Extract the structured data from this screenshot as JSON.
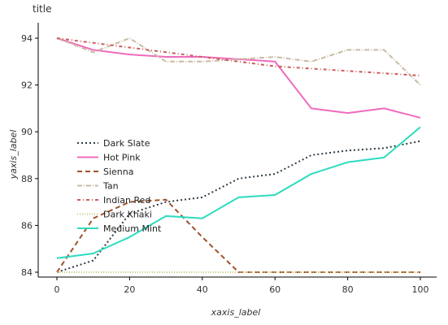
{
  "chart_data": {
    "type": "line",
    "title": "title",
    "xlabel": "xaxis_label",
    "ylabel": "yaxis_label",
    "xlim": [
      0,
      100
    ],
    "ylim": [
      84,
      94
    ],
    "xticks": [
      0,
      20,
      40,
      60,
      80,
      100
    ],
    "yticks": [
      84,
      86,
      88,
      90,
      92,
      94
    ],
    "grid": false,
    "legend_placement": "left-inside",
    "x": [
      0,
      10,
      20,
      30,
      40,
      50,
      60,
      70,
      80,
      90,
      100
    ],
    "series": [
      {
        "name": "Dark Slate",
        "color": "#2f3b45",
        "dash": "2,3",
        "values": [
          84.0,
          84.5,
          86.5,
          87.0,
          87.2,
          88.0,
          88.2,
          89.0,
          89.2,
          89.3,
          89.6
        ]
      },
      {
        "name": "Hot Pink",
        "color": "#f06bbd",
        "dash": "",
        "values": [
          94.0,
          93.5,
          93.3,
          93.2,
          93.2,
          93.1,
          93.0,
          91.0,
          90.8,
          91.0,
          90.6
        ]
      },
      {
        "name": "Sienna",
        "color": "#a0522d",
        "dash": "6,4",
        "values": [
          84.0,
          86.3,
          87.0,
          87.1,
          85.5,
          84.0,
          84.0,
          84.0,
          84.0,
          84.0,
          84.0
        ]
      },
      {
        "name": "Tan",
        "color": "#c8bba4",
        "dash": "6,2,1,2",
        "values": [
          94.0,
          93.4,
          94.0,
          93.0,
          93.0,
          93.1,
          93.2,
          93.0,
          93.5,
          93.5,
          92.0
        ]
      },
      {
        "name": "Indian Red",
        "color": "#cd5c5c",
        "dash": "4,3,1,3",
        "values": [
          94.0,
          93.8,
          93.6,
          93.4,
          93.2,
          93.0,
          92.8,
          92.7,
          92.6,
          92.5,
          92.4
        ]
      },
      {
        "name": "Dark Khaki",
        "color": "#c9c77a",
        "dash": "1,2",
        "values": [
          84.0,
          84.0,
          84.0,
          84.0,
          84.0,
          84.0,
          84.0,
          84.0,
          84.0,
          84.0,
          84.0
        ]
      },
      {
        "name": "Medium Mint",
        "color": "#2ddbc0",
        "dash": "",
        "values": [
          84.6,
          84.8,
          85.5,
          86.4,
          86.3,
          87.2,
          87.3,
          88.2,
          88.7,
          88.9,
          90.2
        ]
      }
    ]
  }
}
